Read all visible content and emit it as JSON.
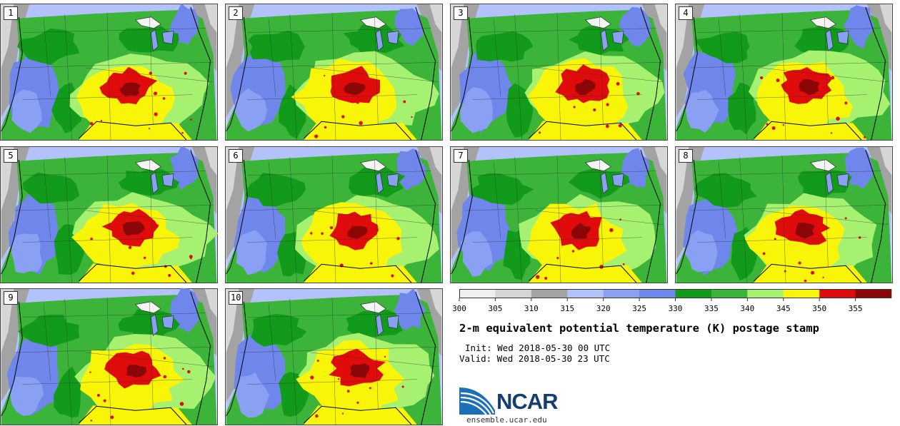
{
  "panels": [
    {
      "label": "1"
    },
    {
      "label": "2"
    },
    {
      "label": "3"
    },
    {
      "label": "4"
    },
    {
      "label": "5"
    },
    {
      "label": "6"
    },
    {
      "label": "7"
    },
    {
      "label": "8"
    },
    {
      "label": "9"
    },
    {
      "label": "10"
    }
  ],
  "colorbar": {
    "colors": [
      "#efefef",
      "#d6d6d6",
      "#a3a3a3",
      "#b3c2fb",
      "#8aa0f3",
      "#6f86ea",
      "#129a1a",
      "#3cb43a",
      "#a6f270",
      "#f9f508",
      "#e00b0b",
      "#8b0707"
    ],
    "ticks": [
      "300",
      "305",
      "310",
      "315",
      "320",
      "325",
      "330",
      "335",
      "340",
      "345",
      "350",
      "355"
    ]
  },
  "title": "2-m equivalent potential temperature (K) postage stamp",
  "init": "Init: Wed 2018-05-30 00 UTC",
  "valid": "Valid: Wed 2018-05-30 23 UTC",
  "logo": {
    "text": "NCAR",
    "colors": [
      "#1d70b8",
      "#153e70"
    ]
  },
  "site": "ensemble.ucar.edu"
}
